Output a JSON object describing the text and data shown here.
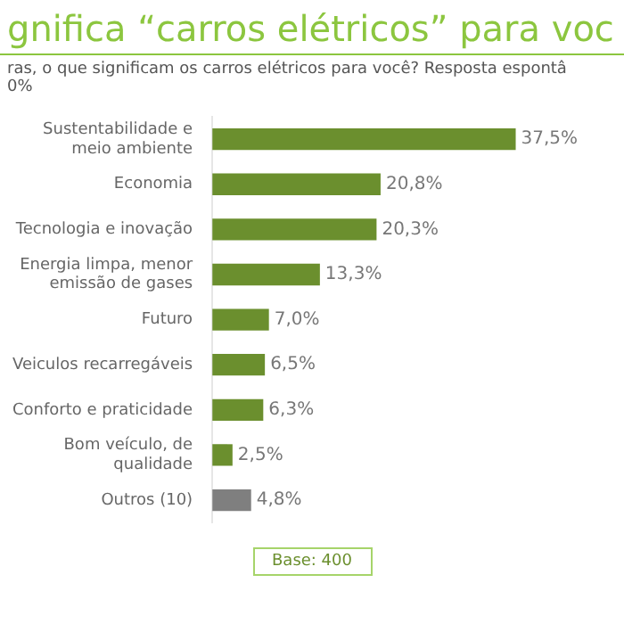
{
  "chart_data": {
    "type": "bar",
    "orientation": "horizontal",
    "title": "gnifica “carros elétricos” para voc",
    "subtitle": "ras, o que significam os carros elétricos para você? Resposta espontâ\n0%",
    "categories": [
      "Sustentabilidade e\nmeio ambiente",
      "Economia",
      "Tecnologia e inovação",
      "Energia limpa, menor\nemissão de gases",
      "Futuro",
      "Veiculos recarregáveis",
      "Conforto e praticidade",
      "Bom veículo, de\nqualidade",
      "Outros (10)"
    ],
    "values": [
      37.5,
      20.8,
      20.3,
      13.3,
      7.0,
      6.5,
      6.3,
      2.5,
      4.8
    ],
    "colors": [
      "#6b8f2e",
      "#6b8f2e",
      "#6b8f2e",
      "#6b8f2e",
      "#6b8f2e",
      "#6b8f2e",
      "#6b8f2e",
      "#6b8f2e",
      "#7f7f7f"
    ],
    "value_labels": [
      "37,5%",
      "20,8%",
      "20,3%",
      "13,3%",
      "7,0%",
      "6,5%",
      "6,3%",
      "2,5%",
      "4,8%"
    ],
    "annotations": [
      "Base: 400"
    ]
  }
}
